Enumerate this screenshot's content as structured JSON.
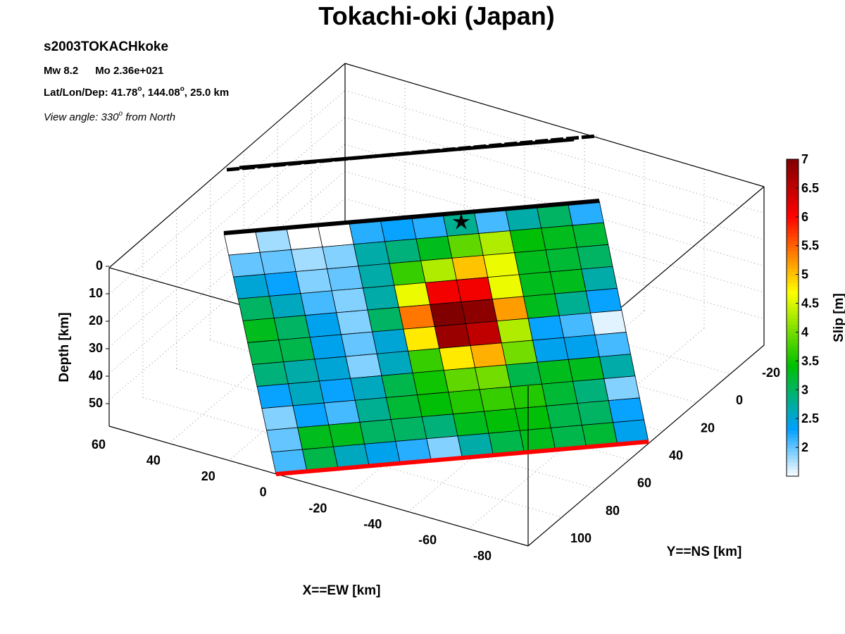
{
  "chart_data": {
    "type": "heatmap",
    "title": "Tokachi-oki (Japan)",
    "event_id": "s2003TOKACHkoke",
    "mw": "Mw 8.2",
    "mo": "Mo 2.36e+021",
    "location_prefix": "Lat/Lon/Dep: 41.78",
    "location_lon": ", 144.08",
    "location_dep": ", 25.0 km",
    "degree_symbol": "o",
    "view_prefix": "View angle: 330",
    "view_suffix": " from North",
    "xlabel": "X==EW [km]",
    "ylabel": "Y==NS [km]",
    "zlabel": "Depth [km]",
    "colorbar_label": "Slip [m]",
    "x_ticks": [
      "60",
      "40",
      "20",
      "0",
      "-20",
      "-40",
      "-60",
      "-80"
    ],
    "y_ticks": [
      "-20",
      "0",
      "20",
      "40",
      "60",
      "80",
      "100"
    ],
    "z_ticks": [
      "0",
      "10",
      "20",
      "30",
      "40",
      "50"
    ],
    "colorbar_ticks": [
      "2",
      "2.5",
      "3",
      "3.5",
      "4",
      "4.5",
      "5",
      "5.5",
      "6",
      "6.5",
      "7"
    ],
    "colorbar_range": [
      1.5,
      7
    ],
    "slip_grid": [
      [
        1.5,
        1.8,
        1.5,
        1.5,
        2.2,
        2.3,
        2.2,
        2.8,
        2.1,
        2.7,
        3.0,
        2.2
      ],
      [
        2.0,
        2.0,
        1.8,
        1.9,
        2.7,
        2.9,
        3.3,
        3.9,
        4.3,
        3.4,
        3.3,
        3.2
      ],
      [
        2.5,
        2.3,
        1.9,
        2.0,
        2.7,
        3.7,
        4.3,
        5.0,
        4.6,
        3.3,
        3.2,
        3.0
      ],
      [
        3.0,
        2.6,
        2.1,
        1.9,
        2.7,
        4.6,
        6.1,
        6.1,
        4.6,
        3.3,
        3.3,
        2.7
      ],
      [
        3.3,
        3.0,
        2.4,
        1.9,
        3.0,
        5.4,
        7.0,
        6.9,
        5.2,
        3.3,
        2.8,
        2.3
      ],
      [
        3.1,
        3.1,
        2.4,
        2.0,
        2.5,
        4.8,
        6.8,
        6.5,
        4.3,
        2.3,
        2.1,
        1.6
      ],
      [
        2.9,
        2.7,
        2.5,
        1.9,
        2.6,
        3.7,
        4.8,
        5.1,
        4.0,
        2.4,
        2.4,
        2.1
      ],
      [
        2.3,
        2.6,
        2.3,
        2.6,
        3.1,
        3.5,
        3.9,
        4.0,
        3.1,
        3.3,
        3.3,
        2.7
      ],
      [
        1.9,
        2.3,
        2.1,
        2.8,
        3.2,
        3.4,
        3.6,
        3.7,
        3.6,
        3.2,
        2.9,
        1.9
      ],
      [
        2.0,
        3.3,
        3.3,
        3.0,
        3.0,
        2.9,
        3.3,
        3.4,
        3.4,
        3.1,
        3.0,
        2.3
      ],
      [
        2.1,
        3.1,
        2.6,
        2.4,
        2.2,
        1.9,
        2.7,
        3.1,
        3.3,
        3.1,
        3.2,
        2.4
      ]
    ],
    "colors": {
      "trench_top": "#000000",
      "fault_bottom": "#ff0000",
      "colormap": [
        "#ffffff",
        "#00a0ff",
        "#00c000",
        "#ffff00",
        "#ff0000",
        "#800000"
      ]
    }
  }
}
